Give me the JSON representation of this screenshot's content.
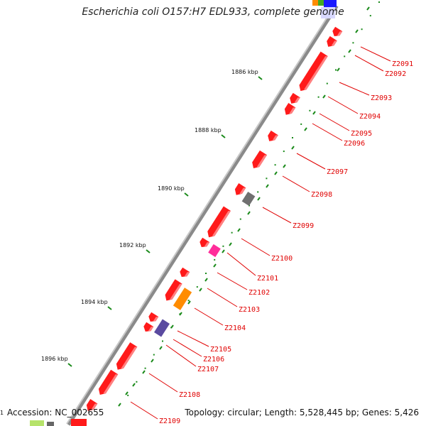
{
  "title": "Escherichia coli O157:H7 EDL933, complete genome",
  "footer": {
    "accession": "Accession: NC_002655",
    "summary": "Topology: circular; Length: 5,528,445 bp; Genes: 5,426"
  },
  "colors": {
    "gene": "#ff1a1a",
    "leader": "#e00000",
    "backbone": "#8a8a8a",
    "tick": "#1a8a1a",
    "gray_feature": "#707070",
    "pink_feature": "#ff2d9a",
    "orange_feature": "#ff8c00",
    "purple_feature": "#5a4aa0"
  },
  "kbp_labels": [
    "1886 kbp",
    "1888 kbp",
    "1890 kbp",
    "1892 kbp",
    "1894 kbp",
    "1896 kbp"
  ],
  "gene_labels": [
    "Z2091",
    "Z2092",
    "Z2093",
    "Z2094",
    "Z2095",
    "Z2096",
    "Z2097",
    "Z2098",
    "Z2099",
    "Z2100",
    "Z2101",
    "Z2102",
    "Z2103",
    "Z2104",
    "Z2105",
    "Z2106",
    "Z2107",
    "Z2108",
    "Z2109"
  ]
}
